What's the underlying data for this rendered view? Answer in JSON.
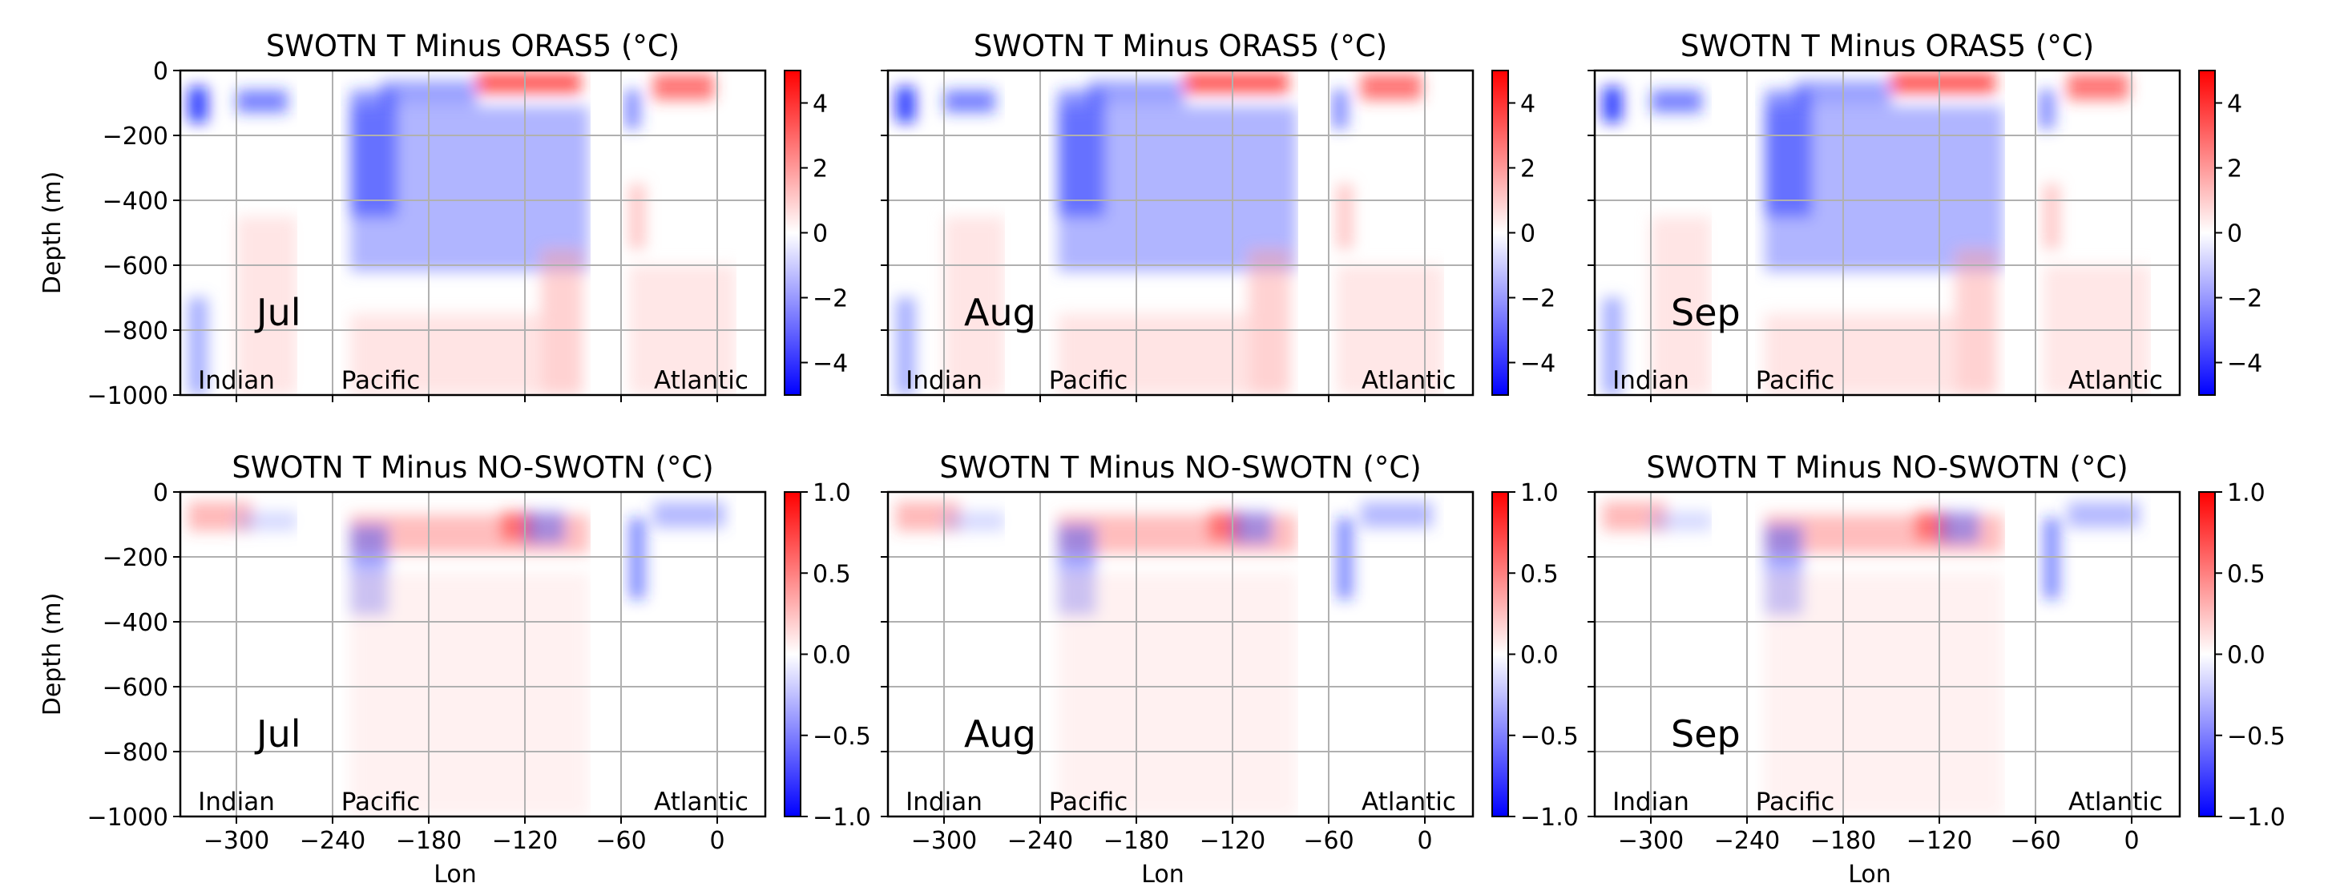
{
  "chart_data": {
    "type": "heatmap",
    "description_rows": [
      "top row: SWOTN minus ORAS5",
      "bottom row: SWOTN minus NO-SWOTN"
    ],
    "x_ticks": [
      -300,
      -240,
      -180,
      -120,
      -60,
      0
    ],
    "x_tick_labels": [
      "−300",
      "−240",
      "−180",
      "−120",
      "−60",
      "0"
    ],
    "xlim": [
      -335,
      30
    ],
    "y_ticks": [
      0,
      -200,
      -400,
      -600,
      -800,
      -1000
    ],
    "y_tick_labels": [
      "0",
      "−200",
      "−400",
      "−600",
      "−800",
      "−1000"
    ],
    "ylim": [
      -1000,
      0
    ],
    "xlabel": "Lon",
    "ylabel": "Depth (m)",
    "grid": true,
    "colormap": "bwr",
    "colors": {
      "negative": "#0000ff",
      "zero": "#ffffff",
      "positive": "#ff0000",
      "grid": "#b0b0b0"
    },
    "basin_labels": [
      {
        "text": "Indian",
        "lon": -300
      },
      {
        "text": "Pacific",
        "lon": -210
      },
      {
        "text": "Atlantic",
        "lon": -10
      }
    ],
    "basin_breaks_lon": [
      -262,
      -229,
      -80,
      -58,
      12
    ],
    "panels": [
      {
        "row": 0,
        "col": 0,
        "title": "SWOTN T Minus ORAS5 (°C)",
        "month": "Jul",
        "clim": [
          -5,
          5
        ],
        "cbar_ticks": [
          4,
          2,
          0,
          -2,
          -4
        ],
        "cbar_tick_labels": [
          "4",
          "2",
          "0",
          "−2",
          "−4"
        ]
      },
      {
        "row": 0,
        "col": 1,
        "title": "SWOTN T Minus ORAS5 (°C)",
        "month": "Aug",
        "clim": [
          -5,
          5
        ],
        "cbar_ticks": [
          4,
          2,
          0,
          -2,
          -4
        ],
        "cbar_tick_labels": [
          "4",
          "2",
          "0",
          "−2",
          "−4"
        ]
      },
      {
        "row": 0,
        "col": 2,
        "title": "SWOTN T Minus ORAS5 (°C)",
        "month": "Sep",
        "clim": [
          -5,
          5
        ],
        "cbar_ticks": [
          4,
          2,
          0,
          -2,
          -4
        ],
        "cbar_tick_labels": [
          "4",
          "2",
          "0",
          "−2",
          "−4"
        ]
      },
      {
        "row": 1,
        "col": 0,
        "title": "SWOTN T Minus NO-SWOTN (°C)",
        "month": "Jul",
        "clim": [
          -1,
          1
        ],
        "cbar_ticks": [
          1.0,
          0.5,
          0.0,
          -0.5,
          -1.0
        ],
        "cbar_tick_labels": [
          "1.0",
          "0.5",
          "0.0",
          "−0.5",
          "−1.0"
        ]
      },
      {
        "row": 1,
        "col": 1,
        "title": "SWOTN T Minus NO-SWOTN (°C)",
        "month": "Aug",
        "clim": [
          -1,
          1
        ],
        "cbar_ticks": [
          1.0,
          0.5,
          0.0,
          -0.5,
          -1.0
        ],
        "cbar_tick_labels": [
          "1.0",
          "0.5",
          "0.0",
          "−0.5",
          "−1.0"
        ]
      },
      {
        "row": 1,
        "col": 2,
        "title": "SWOTN T Minus NO-SWOTN (°C)",
        "month": "Sep",
        "clim": [
          -1,
          1
        ],
        "cbar_ticks": [
          1.0,
          0.5,
          0.0,
          -0.5,
          -1.0
        ],
        "cbar_tick_labels": [
          "1.0",
          "0.5",
          "0.0",
          "−0.5",
          "−1.0"
        ]
      }
    ]
  }
}
